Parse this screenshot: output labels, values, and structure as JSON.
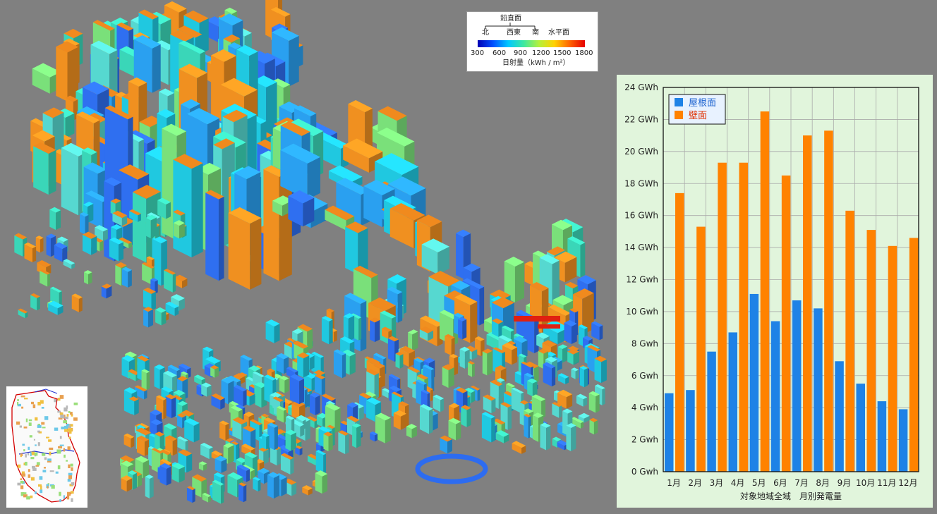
{
  "legend": {
    "group_label": "鉛直面",
    "dir_north": "北",
    "dir_west_east": "西東",
    "dir_south": "南",
    "dir_horizontal": "水平面",
    "scale_values": [
      "300",
      "600",
      "900",
      "1200",
      "1500",
      "1800"
    ],
    "unit_label": "日射量（kWh / m²）",
    "colormap": [
      "#0000b4",
      "#0050ff",
      "#00c8ff",
      "#3ce8a0",
      "#b4f03c",
      "#ffd200",
      "#ff6400",
      "#e60000"
    ]
  },
  "scene": {
    "ground_color": "#808080",
    "bldg_colors": [
      "#20c8e0",
      "#3ad6b8",
      "#7ae07a",
      "#2aa0f0",
      "#56d8d0",
      "#f09020",
      "#2f6ff0"
    ]
  },
  "chart_data": {
    "type": "bar",
    "categories": [
      "1月",
      "2月",
      "3月",
      "4月",
      "5月",
      "6月",
      "7月",
      "8月",
      "9月",
      "10月",
      "11月",
      "12月"
    ],
    "series": [
      {
        "name": "屋根面",
        "color": "#1e82e6",
        "values": [
          4.9,
          5.1,
          7.5,
          8.7,
          11.1,
          9.4,
          10.7,
          10.2,
          6.9,
          5.5,
          4.4,
          3.9
        ]
      },
      {
        "name": "壁面",
        "color": "#ff8200",
        "values": [
          17.4,
          15.3,
          19.3,
          19.3,
          22.5,
          18.5,
          21.0,
          21.3,
          16.3,
          15.1,
          14.1,
          14.6
        ]
      }
    ],
    "yticks": [
      "0 Gwh",
      "2 Gwh",
      "4 Gwh",
      "6 Gwh",
      "8 Gwh",
      "10 Gwh",
      "12 Gwh",
      "14 GWh",
      "16 GWh",
      "18 GWh",
      "20 GWh",
      "22 GWh",
      "24 GWh"
    ],
    "ylim": [
      0,
      24
    ],
    "xlabel": "対象地域全域　月別発電量",
    "grid": true,
    "legend_position": "top-left",
    "background": "#e1f5dc",
    "grid_color": "#aaaaaa"
  }
}
